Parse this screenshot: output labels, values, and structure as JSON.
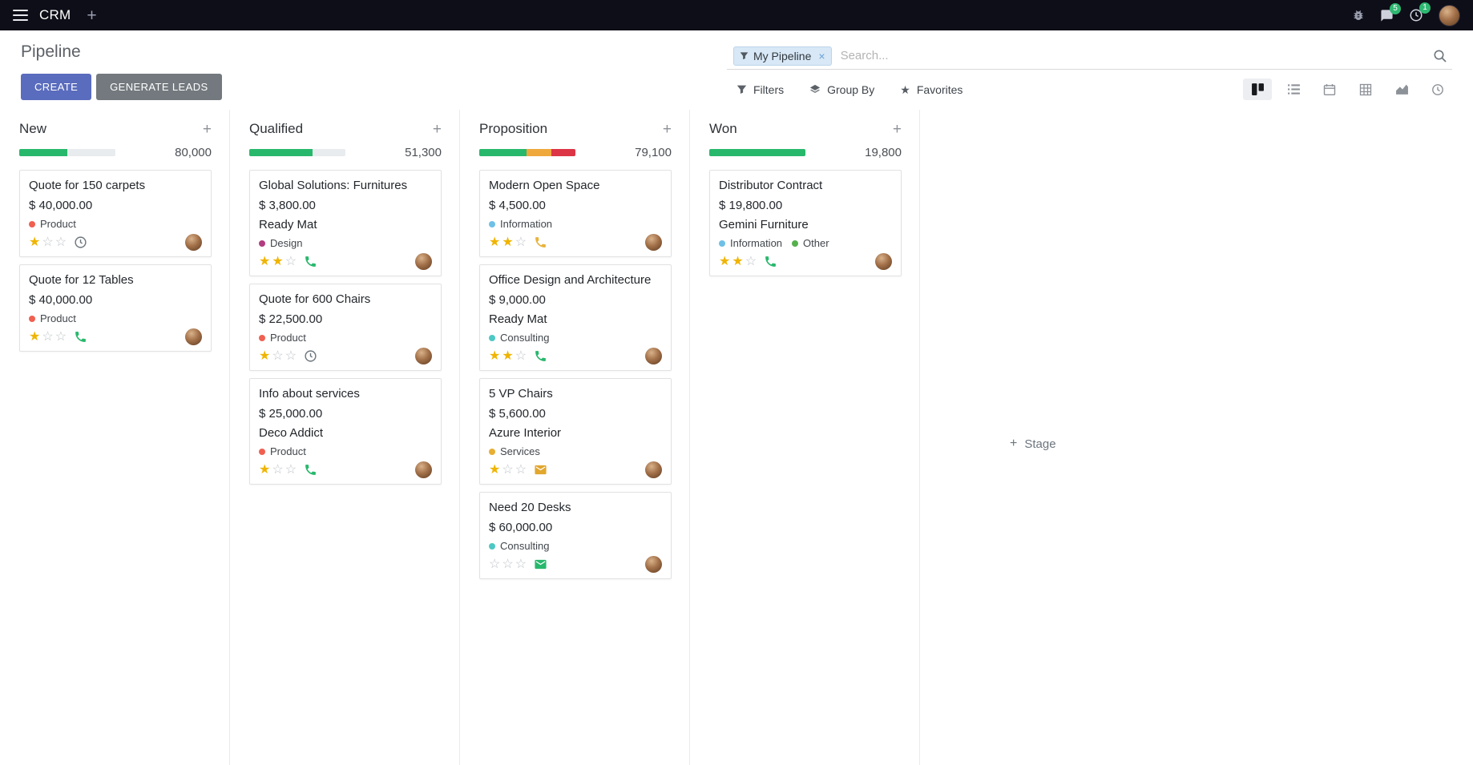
{
  "icons": {
    "add": "+",
    "star_filled": "★",
    "star_empty": "☆",
    "close": "×"
  },
  "topbar": {
    "app_name": "CRM",
    "messages_badge": "5",
    "activities_badge": "1"
  },
  "control_panel": {
    "title": "Pipeline",
    "create_label": "CREATE",
    "generate_leads_label": "GENERATE LEADS",
    "search": {
      "facet_label": "My Pipeline",
      "placeholder": "Search..."
    },
    "filters_label": "Filters",
    "group_by_label": "Group By",
    "favorites_label": "Favorites"
  },
  "board": {
    "add_stage_label": "Stage",
    "progress_colors": {
      "success": "#28b86c",
      "warning": "#efa83c",
      "danger": "#dc3545",
      "track": "#e9ecef"
    },
    "columns": [
      {
        "name": "New",
        "total": "80,000",
        "progress": [
          {
            "status": "success",
            "pct": 50
          }
        ],
        "cards": [
          {
            "title": "Quote for 150 carpets",
            "amount": "$ 40,000.00",
            "partner": "",
            "tags": [
              {
                "label": "Product",
                "color": "#f06050"
              }
            ],
            "stars": 1,
            "activity": {
              "type": "clock",
              "color": "#6c757d"
            }
          },
          {
            "title": "Quote for 12 Tables",
            "amount": "$ 40,000.00",
            "partner": "",
            "tags": [
              {
                "label": "Product",
                "color": "#f06050"
              }
            ],
            "stars": 1,
            "activity": {
              "type": "phone",
              "color": "#28b86c"
            }
          }
        ]
      },
      {
        "name": "Qualified",
        "total": "51,300",
        "progress": [
          {
            "status": "success",
            "pct": 66
          }
        ],
        "cards": [
          {
            "title": "Global Solutions: Furnitures",
            "amount": "$ 3,800.00",
            "partner": "Ready Mat",
            "tags": [
              {
                "label": "Design",
                "color": "#b23d80"
              }
            ],
            "stars": 2,
            "activity": {
              "type": "phone",
              "color": "#28b86c"
            }
          },
          {
            "title": "Quote for 600 Chairs",
            "amount": "$ 22,500.00",
            "partner": "",
            "tags": [
              {
                "label": "Product",
                "color": "#f06050"
              }
            ],
            "stars": 1,
            "activity": {
              "type": "clock",
              "color": "#6c757d"
            }
          },
          {
            "title": "Info about services",
            "amount": "$ 25,000.00",
            "partner": "Deco Addict",
            "tags": [
              {
                "label": "Product",
                "color": "#f06050"
              }
            ],
            "stars": 1,
            "activity": {
              "type": "phone",
              "color": "#28b86c"
            }
          }
        ]
      },
      {
        "name": "Proposition",
        "total": "79,100",
        "progress": [
          {
            "status": "success",
            "pct": 49
          },
          {
            "status": "warning",
            "pct": 26
          },
          {
            "status": "danger",
            "pct": 25
          }
        ],
        "cards": [
          {
            "title": "Modern Open Space",
            "amount": "$ 4,500.00",
            "partner": "",
            "tags": [
              {
                "label": "Information",
                "color": "#6fc0e6"
              }
            ],
            "stars": 2,
            "activity": {
              "type": "phone",
              "color": "#e8b33c"
            }
          },
          {
            "title": "Office Design and Architecture",
            "amount": "$ 9,000.00",
            "partner": "Ready Mat",
            "tags": [
              {
                "label": "Consulting",
                "color": "#4ec8c4"
              }
            ],
            "stars": 2,
            "activity": {
              "type": "phone",
              "color": "#28b86c"
            }
          },
          {
            "title": "5 VP Chairs",
            "amount": "$ 5,600.00",
            "partner": "Azure Interior",
            "tags": [
              {
                "label": "Services",
                "color": "#e7af34"
              }
            ],
            "stars": 1,
            "activity": {
              "type": "mail",
              "color": "#e2a72e"
            }
          },
          {
            "title": "Need 20 Desks",
            "amount": "$ 60,000.00",
            "partner": "",
            "tags": [
              {
                "label": "Consulting",
                "color": "#4ec8c4"
              }
            ],
            "stars": 0,
            "activity": {
              "type": "mail",
              "color": "#28b86c"
            }
          }
        ]
      },
      {
        "name": "Won",
        "total": "19,800",
        "progress": [
          {
            "status": "success",
            "pct": 100
          }
        ],
        "cards": [
          {
            "title": "Distributor Contract",
            "amount": "$ 19,800.00",
            "partner": "Gemini Furniture",
            "tags": [
              {
                "label": "Information",
                "color": "#6fc0e6"
              },
              {
                "label": "Other",
                "color": "#56b04c"
              }
            ],
            "stars": 2,
            "activity": {
              "type": "phone",
              "color": "#28b86c"
            }
          }
        ]
      }
    ]
  }
}
